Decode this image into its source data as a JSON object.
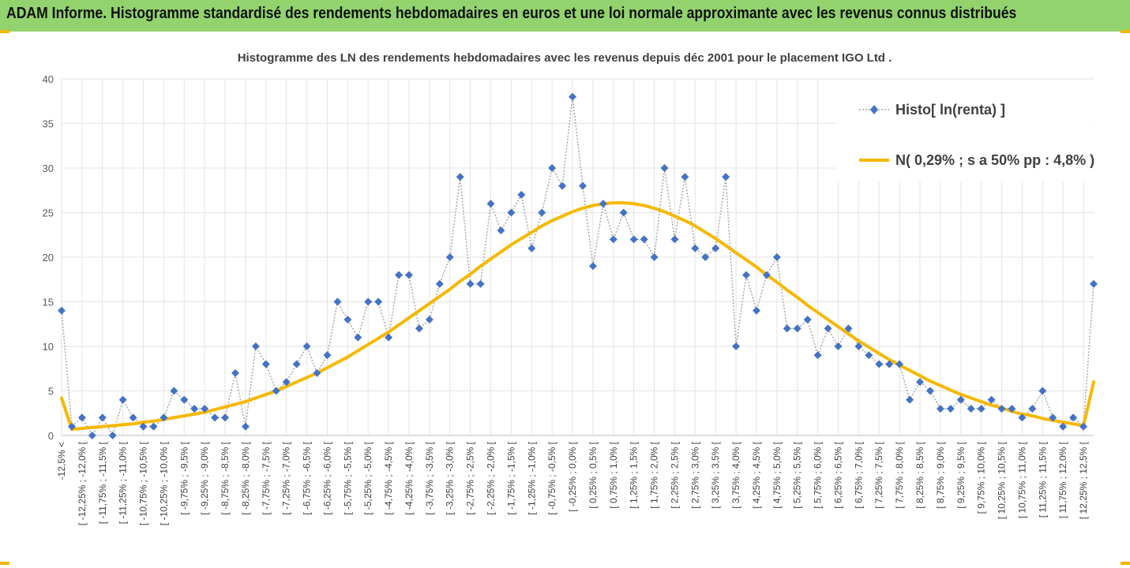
{
  "page": {
    "banner_title": "ADAM Informe. Histogramme standardisé des rendements hebdomadaires en euros et une loi normale approximante avec les revenus connus distribués"
  },
  "colors": {
    "banner": "#92d36e",
    "histogram": "#4472c4",
    "normal_curve": "#f5b800",
    "histogram_line": "#a6a6a6"
  },
  "chart_data": {
    "type": "line",
    "title": "Histogramme  des LN des rendements hebdomadaires avec les revenus depuis déc 2001 pour le placement IGO Ltd .",
    "xlabel": "",
    "ylabel": "",
    "ylim": [
      0,
      40
    ],
    "yticks": [
      0,
      5,
      10,
      15,
      20,
      25,
      30,
      35,
      40
    ],
    "grid": true,
    "legend_position": "top-right",
    "tick_labels": [
      "-12,5% <",
      "[ -12,25% ; -12,0% [",
      "[ -11,75% ; -11,5% [",
      "[ -11,25% ; -11,0% [",
      "[ -10,75% ; -10,5% [",
      "[ -10,25% ; -10,0% [",
      "[ -9,75% ; -9,5% [",
      "[ -9,25% ; -9,0% [",
      "[ -8,75% ; -8,5% [",
      "[ -8,25% ; -8,0% [",
      "[ -7,75% ; -7,5% [",
      "[ -7,25% ; -7,0% [",
      "[ -6,75% ; -6,5% [",
      "[ -6,25% ; -6,0% [",
      "[ -5,75% ; -5,5% [",
      "[ -5,25% ; -5,0% [",
      "[ -4,75% ; -4,5% [",
      "[ -4,25% ; -4,0% [",
      "[ -3,75% ; -3,5% [",
      "[ -3,25% ; -3,0% [",
      "[ -2,75% ; -2,5% [",
      "[ -2,25% ; -2,0% [",
      "[ -1,75% ; -1,5% [",
      "[ -1,25% ; -1,0% [",
      "[ -0,75% ; -0,5% [",
      "[ -0,25% ; 0,0% [",
      "[ 0,25% ; 0,5% [",
      "[ 0,75% ; 1,0% [",
      "[ 1,25% ; 1,5% [",
      "[ 1,75% ; 2,0% [",
      "[ 2,25% ; 2,5% [",
      "[ 2,75% ; 3,0% [",
      "[ 3,25% ; 3,5% [",
      "[ 3,75% ; 4,0% [",
      "[ 4,25% ; 4,5% [",
      "[ 4,75% ; 5,0% [",
      "[ 5,25% ; 5,5% [",
      "[ 5,75% ; 6,0% [",
      "[ 6,25% ; 6,5% [",
      "[ 6,75% ; 7,0% [",
      "[ 7,25% ; 7,5% [",
      "[ 7,75% ; 8,0% [",
      "[ 8,25% ; 8,5% [",
      "[ 8,75% ; 9,0% [",
      "[ 9,25% ; 9,5% [",
      "[ 9,75% ; 10,0% [",
      "[ 10,25% ; 10,5% [",
      "[ 10,75% ; 11,0% [",
      "[ 11,25% ; 11,5% [",
      "[ 11,75% ; 12,0% [",
      "[ 12,25% ; 12,5% ["
    ],
    "series": [
      {
        "name": "Histo[ ln(renta) ]",
        "values": [
          14,
          1,
          2,
          0,
          2,
          0,
          4,
          2,
          1,
          1,
          2,
          5,
          4,
          3,
          3,
          2,
          2,
          7,
          1,
          10,
          8,
          5,
          6,
          8,
          10,
          7,
          9,
          15,
          13,
          11,
          15,
          15,
          11,
          18,
          18,
          12,
          13,
          17,
          20,
          29,
          17,
          17,
          26,
          23,
          25,
          27,
          21,
          25,
          30,
          28,
          38,
          28,
          19,
          26,
          22,
          25,
          22,
          22,
          20,
          30,
          22,
          29,
          21,
          20,
          21,
          29,
          10,
          18,
          14,
          18,
          20,
          12,
          12,
          13,
          9,
          12,
          10,
          12,
          10,
          9,
          8,
          8,
          8,
          4,
          6,
          5,
          3,
          3,
          4,
          3,
          3,
          4,
          3,
          3,
          2,
          3,
          5,
          2,
          1,
          2,
          1,
          17
        ]
      },
      {
        "name": "N( 0,29% ; s a 50% pp : 4,8% )",
        "values": [
          4.2,
          0.7,
          0.8,
          0.9,
          1.0,
          1.1,
          1.2,
          1.3,
          1.5,
          1.6,
          1.8,
          2.0,
          2.2,
          2.4,
          2.6,
          2.9,
          3.2,
          3.5,
          3.8,
          4.2,
          4.6,
          5.0,
          5.5,
          6.0,
          6.5,
          7.0,
          7.6,
          8.2,
          8.8,
          9.5,
          10.2,
          10.9,
          11.6,
          12.4,
          13.2,
          14.0,
          14.8,
          15.6,
          16.4,
          17.3,
          18.1,
          19.0,
          19.8,
          20.6,
          21.4,
          22.1,
          22.8,
          23.5,
          24.1,
          24.6,
          25.1,
          25.5,
          25.8,
          26.0,
          26.1,
          26.1,
          26.0,
          25.8,
          25.5,
          25.1,
          24.6,
          24.1,
          23.5,
          22.8,
          22.1,
          21.3,
          20.5,
          19.7,
          18.9,
          18.0,
          17.2,
          16.3,
          15.5,
          14.6,
          13.8,
          13.0,
          12.2,
          11.4,
          10.6,
          9.9,
          9.2,
          8.5,
          7.9,
          7.3,
          6.7,
          6.1,
          5.6,
          5.1,
          4.6,
          4.2,
          3.8,
          3.4,
          3.1,
          2.7,
          2.4,
          2.2,
          1.9,
          1.7,
          1.5,
          1.3,
          1.1,
          6.0
        ]
      }
    ]
  }
}
